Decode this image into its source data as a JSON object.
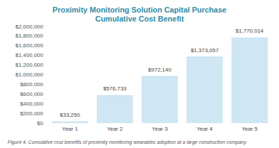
{
  "chart_data": {
    "type": "bar",
    "title": "Proximity Monitoring Solution Capital Purchase\nCumulative Cost Benefit",
    "caption": "Figure 4. Cumulative cost benefits of proximity monitoring wearables adoption at a large construction company",
    "categories": [
      "Year 1",
      "Year 2",
      "Year 3",
      "Year 4",
      "Year 5"
    ],
    "values": [
      33250,
      576733,
      972140,
      1373057,
      1770014
    ],
    "value_labels": [
      "$33,250",
      "$576,733",
      "$972,140",
      "$1,373,057",
      "$1,770,014"
    ],
    "data_labels": true,
    "color": "#cfe6f4",
    "ylim": [
      0,
      2000000
    ],
    "yticks": [
      {
        "value": 0,
        "label": "$0"
      },
      {
        "value": 200000,
        "label": "$200,000"
      },
      {
        "value": 400000,
        "label": "$400,000"
      },
      {
        "value": 600000,
        "label": "$600,000"
      },
      {
        "value": 800000,
        "label": "$800,000"
      },
      {
        "value": 1000000,
        "label": "$1,000,000"
      },
      {
        "value": 1200000,
        "label": "$1,200,000"
      },
      {
        "value": 1400000,
        "label": "$1,400,000"
      },
      {
        "value": 1600000,
        "label": "$1,600,000"
      },
      {
        "value": 1800000,
        "label": "$1,800,000"
      },
      {
        "value": 2000000,
        "label": "$2,000,000"
      }
    ],
    "grid": false
  }
}
